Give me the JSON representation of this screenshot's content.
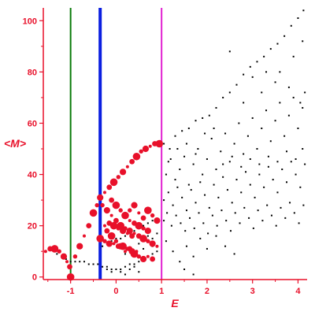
{
  "chart_data": {
    "type": "scatter",
    "title": "",
    "xlabel": "E",
    "ylabel": "<M>",
    "xlim": [
      -1.6,
      4.2
    ],
    "ylim": [
      -1,
      105
    ],
    "xticks": [
      -1,
      0,
      1,
      2,
      3,
      4
    ],
    "xtick_labels": [
      "-1",
      "0",
      "1",
      "2",
      "3",
      "4"
    ],
    "yticks": [
      0,
      20,
      40,
      60,
      80,
      100
    ],
    "ytick_labels": [
      "0",
      "20",
      "40",
      "60",
      "80",
      "100"
    ],
    "grid": false,
    "legend": "none",
    "vlines": [
      {
        "x": -1.0,
        "color": "#0a7a0a"
      },
      {
        "x": -0.35,
        "color": "#0a1ee0"
      },
      {
        "x": 1.0,
        "color": "#e020d0"
      }
    ],
    "colors": {
      "axis": "#e8102a",
      "labels": "#e8102a",
      "black_points": "#000000",
      "red_points": "#e8102a"
    },
    "series": [
      {
        "color": "#000000",
        "marker_size": "small",
        "points": [
          [
            1.05,
            52
          ],
          [
            1.18,
            50
          ],
          [
            1.3,
            55
          ],
          [
            1.45,
            57
          ],
          [
            1.6,
            58
          ],
          [
            1.75,
            61
          ],
          [
            1.9,
            62
          ],
          [
            2.05,
            63
          ],
          [
            2.2,
            66
          ],
          [
            2.35,
            70
          ],
          [
            2.5,
            72
          ],
          [
            2.65,
            75
          ],
          [
            2.8,
            79
          ],
          [
            2.95,
            82
          ],
          [
            3.1,
            84
          ],
          [
            3.25,
            86
          ],
          [
            3.4,
            89
          ],
          [
            3.55,
            91
          ],
          [
            3.7,
            94
          ],
          [
            3.85,
            98
          ],
          [
            4.0,
            101
          ],
          [
            4.12,
            104
          ],
          [
            2.5,
            88
          ],
          [
            3.0,
            78
          ],
          [
            3.3,
            80
          ],
          [
            3.6,
            80
          ],
          [
            3.9,
            86
          ],
          [
            4.1,
            92
          ],
          [
            2.8,
            68
          ],
          [
            3.2,
            72
          ],
          [
            3.5,
            76
          ],
          [
            3.8,
            74
          ],
          [
            4.05,
            68
          ],
          [
            1.1,
            40
          ],
          [
            1.2,
            46
          ],
          [
            1.3,
            38
          ],
          [
            1.4,
            42
          ],
          [
            1.5,
            47
          ],
          [
            1.6,
            36
          ],
          [
            1.7,
            44
          ],
          [
            1.8,
            50
          ],
          [
            1.9,
            40
          ],
          [
            2.0,
            46
          ],
          [
            2.1,
            54
          ],
          [
            2.2,
            42
          ],
          [
            2.3,
            49
          ],
          [
            2.4,
            56
          ],
          [
            2.5,
            45
          ],
          [
            2.6,
            52
          ],
          [
            2.7,
            60
          ],
          [
            2.8,
            48
          ],
          [
            2.9,
            55
          ],
          [
            3.0,
            62
          ],
          [
            3.1,
            50
          ],
          [
            3.2,
            58
          ],
          [
            3.3,
            65
          ],
          [
            3.4,
            53
          ],
          [
            3.5,
            61
          ],
          [
            3.6,
            68
          ],
          [
            3.7,
            55
          ],
          [
            3.8,
            63
          ],
          [
            3.9,
            70
          ],
          [
            4.0,
            58
          ],
          [
            4.1,
            66
          ],
          [
            4.15,
            72
          ],
          [
            1.05,
            30
          ],
          [
            1.15,
            33
          ],
          [
            1.25,
            28
          ],
          [
            1.35,
            35
          ],
          [
            1.45,
            31
          ],
          [
            1.55,
            26
          ],
          [
            1.65,
            34
          ],
          [
            1.75,
            29
          ],
          [
            1.85,
            37
          ],
          [
            1.95,
            32
          ],
          [
            2.05,
            27
          ],
          [
            2.15,
            36
          ],
          [
            2.25,
            31
          ],
          [
            2.35,
            39
          ],
          [
            2.45,
            34
          ],
          [
            2.55,
            29
          ],
          [
            2.65,
            38
          ],
          [
            2.75,
            33
          ],
          [
            2.85,
            41
          ],
          [
            2.95,
            36
          ],
          [
            3.05,
            31
          ],
          [
            3.15,
            40
          ],
          [
            3.25,
            35
          ],
          [
            3.35,
            43
          ],
          [
            3.45,
            38
          ],
          [
            3.55,
            33
          ],
          [
            3.65,
            42
          ],
          [
            3.75,
            37
          ],
          [
            3.85,
            45
          ],
          [
            3.95,
            40
          ],
          [
            4.05,
            35
          ],
          [
            4.15,
            44
          ],
          [
            1.05,
            22
          ],
          [
            1.12,
            25
          ],
          [
            1.22,
            20
          ],
          [
            1.32,
            24
          ],
          [
            1.42,
            21
          ],
          [
            1.52,
            18
          ],
          [
            1.62,
            23
          ],
          [
            1.72,
            19
          ],
          [
            1.82,
            25
          ],
          [
            1.92,
            21
          ],
          [
            2.02,
            17
          ],
          [
            2.12,
            24
          ],
          [
            2.22,
            20
          ],
          [
            2.32,
            26
          ],
          [
            2.42,
            22
          ],
          [
            2.52,
            18
          ],
          [
            2.62,
            25
          ],
          [
            2.72,
            21
          ],
          [
            2.82,
            27
          ],
          [
            2.92,
            23
          ],
          [
            3.02,
            19
          ],
          [
            3.12,
            26
          ],
          [
            3.22,
            22
          ],
          [
            3.32,
            28
          ],
          [
            3.42,
            24
          ],
          [
            3.52,
            20
          ],
          [
            3.62,
            27
          ],
          [
            3.72,
            23
          ],
          [
            3.82,
            29
          ],
          [
            3.92,
            25
          ],
          [
            4.02,
            21
          ],
          [
            4.12,
            28
          ],
          [
            1.1,
            14
          ],
          [
            1.25,
            10
          ],
          [
            1.4,
            6
          ],
          [
            1.55,
            12
          ],
          [
            1.7,
            8
          ],
          [
            1.85,
            15
          ],
          [
            2.0,
            11
          ],
          [
            2.2,
            16
          ],
          [
            2.4,
            12
          ],
          [
            2.6,
            9
          ],
          [
            1.5,
            3
          ],
          [
            1.7,
            1
          ],
          [
            1.15,
            45
          ],
          [
            1.35,
            50
          ],
          [
            1.55,
            52
          ],
          [
            1.75,
            48
          ],
          [
            1.95,
            56
          ],
          [
            2.15,
            58
          ],
          [
            2.35,
            44
          ],
          [
            2.55,
            47
          ],
          [
            2.75,
            43
          ],
          [
            2.95,
            46
          ],
          [
            3.15,
            44
          ],
          [
            3.35,
            47
          ],
          [
            3.55,
            45
          ],
          [
            3.75,
            49
          ],
          [
            3.95,
            46
          ],
          [
            4.1,
            50
          ],
          [
            -1.3,
            9
          ],
          [
            -1.2,
            8
          ],
          [
            -1.1,
            7
          ],
          [
            -1.0,
            6
          ],
          [
            -0.9,
            6
          ],
          [
            -0.8,
            6
          ],
          [
            -0.7,
            6
          ],
          [
            -0.6,
            5
          ],
          [
            -0.5,
            5
          ],
          [
            -0.4,
            5
          ],
          [
            -0.3,
            4
          ],
          [
            -0.2,
            4
          ],
          [
            -0.1,
            3
          ],
          [
            0.0,
            3
          ],
          [
            0.1,
            3
          ],
          [
            0.2,
            4
          ],
          [
            0.3,
            5
          ],
          [
            0.4,
            5
          ],
          [
            0.5,
            6
          ],
          [
            0.6,
            7
          ],
          [
            0.7,
            8
          ],
          [
            0.8,
            9
          ],
          [
            0.9,
            10
          ],
          [
            0.1,
            2
          ],
          [
            0.2,
            1
          ],
          [
            0.3,
            3
          ],
          [
            0.4,
            4
          ],
          [
            -0.2,
            3
          ],
          [
            -0.1,
            2
          ],
          [
            0.5,
            2
          ],
          [
            -0.3,
            12
          ],
          [
            -0.2,
            13
          ],
          [
            -0.1,
            14
          ],
          [
            0.0,
            15
          ],
          [
            0.1,
            15
          ],
          [
            0.2,
            16
          ],
          [
            0.3,
            17
          ],
          [
            0.4,
            18
          ],
          [
            0.5,
            19
          ],
          [
            0.6,
            20
          ],
          [
            0.7,
            21
          ],
          [
            0.8,
            22
          ],
          [
            0.9,
            22
          ],
          [
            0.5,
            13
          ],
          [
            0.6,
            14
          ],
          [
            0.7,
            16
          ],
          [
            0.8,
            15
          ],
          [
            0.9,
            17
          ],
          [
            0.3,
            11
          ],
          [
            0.4,
            10
          ],
          [
            0.2,
            9
          ],
          [
            0.6,
            11
          ],
          [
            0.8,
            12
          ],
          [
            0.9,
            12
          ]
        ]
      },
      {
        "color": "#e8102a",
        "marker_size": "large",
        "points": [
          [
            -1.55,
            10
          ],
          [
            -1.45,
            11
          ],
          [
            -1.35,
            11
          ],
          [
            -1.25,
            10
          ],
          [
            -1.15,
            8
          ],
          [
            -1.08,
            6
          ],
          [
            -1.02,
            4
          ],
          [
            -1.0,
            0
          ],
          [
            -0.9,
            8
          ],
          [
            -0.8,
            12
          ],
          [
            -0.7,
            16
          ],
          [
            -0.6,
            20
          ],
          [
            -0.5,
            25
          ],
          [
            -0.42,
            28
          ],
          [
            -0.35,
            31
          ],
          [
            -0.25,
            33
          ],
          [
            -0.15,
            35
          ],
          [
            -0.05,
            37
          ],
          [
            0.05,
            39
          ],
          [
            0.15,
            41
          ],
          [
            0.25,
            43
          ],
          [
            0.35,
            45
          ],
          [
            0.45,
            47
          ],
          [
            0.55,
            49
          ],
          [
            0.65,
            50
          ],
          [
            0.75,
            51
          ],
          [
            0.85,
            52
          ],
          [
            0.95,
            52
          ],
          [
            -0.3,
            28
          ],
          [
            -0.2,
            26
          ],
          [
            -0.1,
            24
          ],
          [
            0.0,
            22
          ],
          [
            0.1,
            20
          ],
          [
            0.2,
            19
          ],
          [
            0.3,
            18
          ],
          [
            0.4,
            17
          ],
          [
            0.5,
            16
          ],
          [
            0.6,
            15
          ],
          [
            0.7,
            14
          ],
          [
            0.8,
            13
          ],
          [
            0.9,
            12
          ],
          [
            -0.2,
            18
          ],
          [
            -0.1,
            16
          ],
          [
            0.0,
            14
          ],
          [
            0.1,
            12
          ],
          [
            0.2,
            10
          ],
          [
            0.3,
            11
          ],
          [
            0.4,
            9
          ],
          [
            0.5,
            8
          ],
          [
            0.6,
            7
          ],
          [
            0.7,
            8
          ],
          [
            0.8,
            7
          ],
          [
            0.2,
            24
          ],
          [
            0.3,
            26
          ],
          [
            0.4,
            28
          ],
          [
            0.5,
            25
          ],
          [
            0.6,
            23
          ],
          [
            0.7,
            26
          ],
          [
            0.8,
            24
          ],
          [
            0.9,
            22
          ],
          [
            -0.25,
            20
          ],
          [
            -0.15,
            21
          ],
          [
            -0.05,
            20
          ],
          [
            0.05,
            19
          ],
          [
            0.15,
            18
          ],
          [
            0.25,
            17
          ],
          [
            0.35,
            16
          ],
          [
            -0.35,
            15
          ],
          [
            -0.25,
            14
          ],
          [
            -0.15,
            13
          ],
          [
            -0.05,
            13
          ],
          [
            0.05,
            12
          ],
          [
            0.15,
            12
          ],
          [
            0.25,
            11
          ],
          [
            0.35,
            10
          ],
          [
            0.45,
            10
          ],
          [
            -0.1,
            30
          ],
          [
            0.0,
            28
          ],
          [
            0.1,
            26
          ],
          [
            0.2,
            24
          ],
          [
            0.3,
            22
          ],
          [
            0.4,
            21
          ],
          [
            0.5,
            20
          ],
          [
            0.6,
            19
          ],
          [
            0.7,
            18
          ]
        ]
      }
    ]
  }
}
